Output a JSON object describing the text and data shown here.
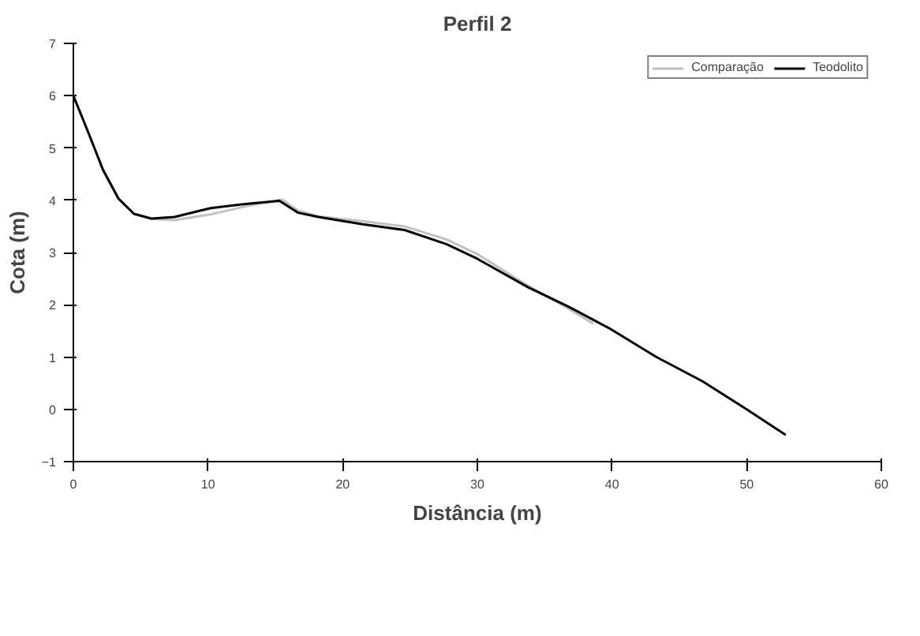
{
  "chart_data": {
    "type": "line",
    "title": "Perfil 2",
    "xlabel": "Distância (m)",
    "ylabel": "Cota (m)",
    "xlim": [
      0,
      60
    ],
    "ylim": [
      -1,
      7
    ],
    "xticks": [
      0,
      10,
      20,
      30,
      40,
      50,
      60
    ],
    "yticks": [
      -1,
      0,
      1,
      2,
      3,
      4,
      5,
      6,
      7
    ],
    "grid": false,
    "legend": "top right",
    "marker": "none",
    "line_style": "solid",
    "series": [
      {
        "name": "Comparação",
        "color": "#c0c0c0",
        "x": [
          0,
          1.07,
          2.2,
          3.35,
          4.5,
          5.8,
          7.5,
          10.2,
          13.1,
          15.5,
          16.7,
          18.2,
          20.8,
          24.6,
          27.7,
          30.0,
          33.8,
          36.8,
          38.6
        ],
        "values": [
          6.0,
          5.32,
          4.58,
          4.03,
          3.74,
          3.64,
          3.62,
          3.73,
          3.9,
          4.01,
          3.8,
          3.69,
          3.62,
          3.5,
          3.25,
          2.97,
          2.36,
          1.92,
          1.64
        ]
      },
      {
        "name": "Teodolito",
        "color": "#000000",
        "x": [
          0,
          1.07,
          2.2,
          3.35,
          4.5,
          5.8,
          7.5,
          10.2,
          12.5,
          15.3,
          16.7,
          18.2,
          21.5,
          24.6,
          27.7,
          30.0,
          33.8,
          36.8,
          39.8,
          43.3,
          46.7,
          50.0,
          52.9
        ],
        "values": [
          6.0,
          5.32,
          4.58,
          4.03,
          3.74,
          3.65,
          3.68,
          3.85,
          3.92,
          3.99,
          3.76,
          3.68,
          3.54,
          3.43,
          3.16,
          2.88,
          2.33,
          1.96,
          1.55,
          1.0,
          0.54,
          0.0,
          -0.49
        ]
      }
    ]
  }
}
